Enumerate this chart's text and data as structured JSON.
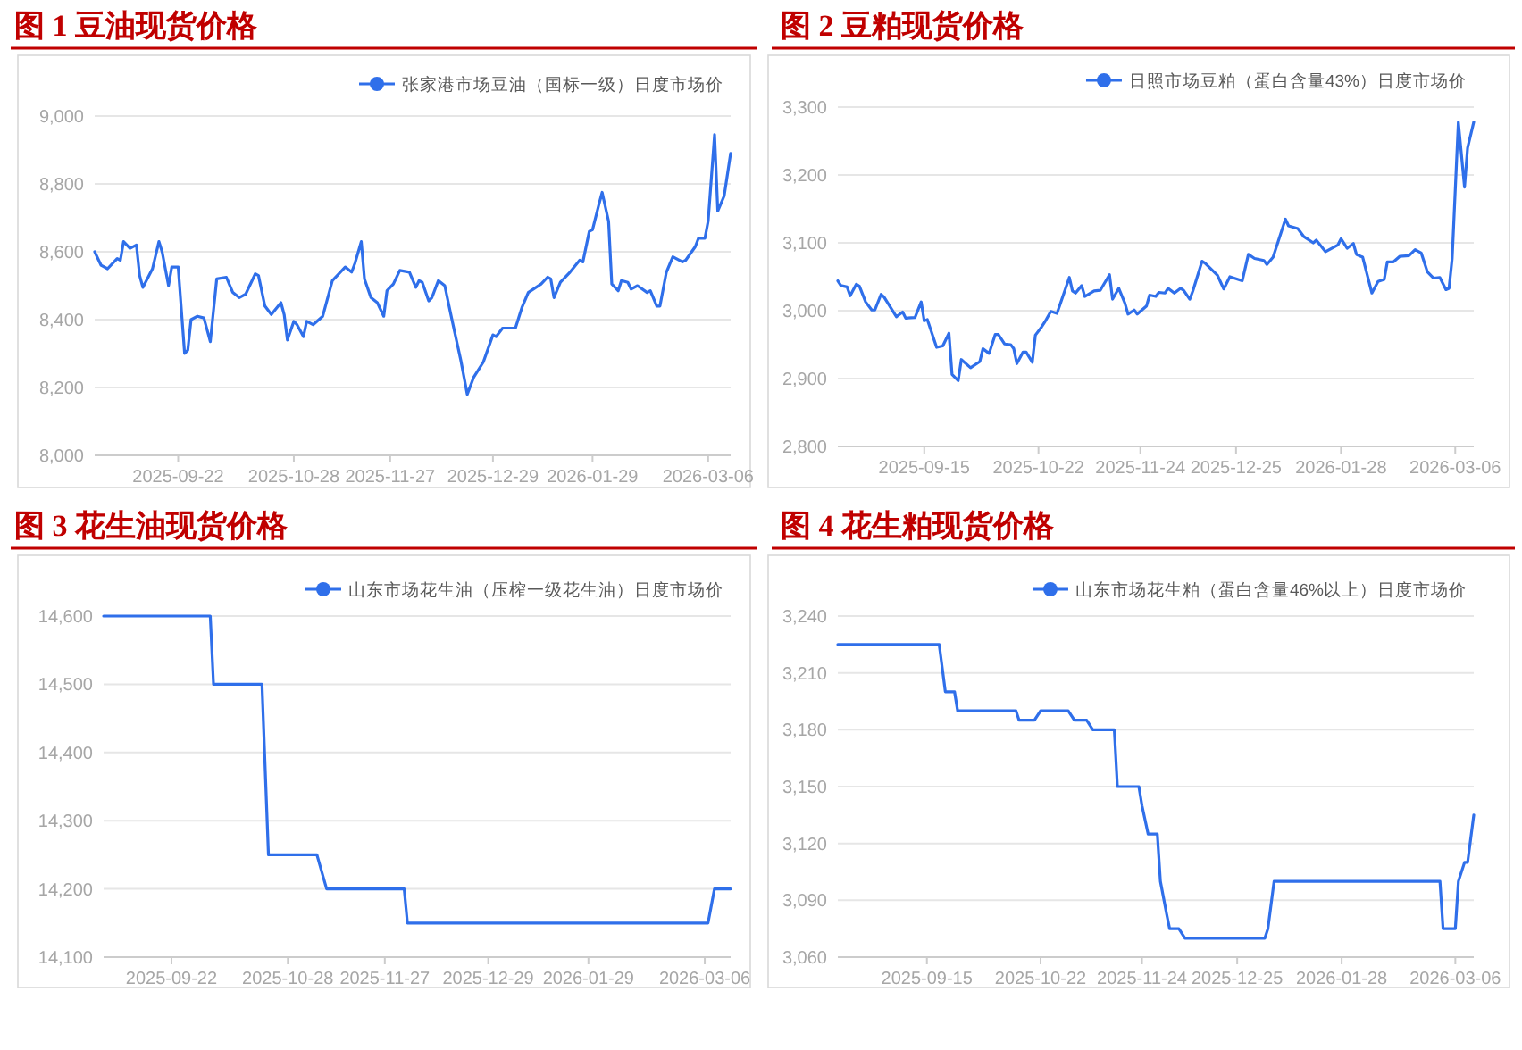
{
  "chart_data": [
    {
      "type": "line",
      "title": "图 1 豆油现货价格",
      "grid": "y",
      "legend": "top right",
      "xlim": [
        "2025-08-27",
        "2026-03-13"
      ],
      "xticks": [
        "2025-09-22",
        "2025-10-28",
        "2025-11-27",
        "2025-12-29",
        "2026-01-29",
        "2026-03-06"
      ],
      "ylim": [
        8000,
        9000
      ],
      "yticks": [
        {
          "value": 8000,
          "label": "8,000"
        },
        {
          "value": 8200,
          "label": "8,200"
        },
        {
          "value": 8400,
          "label": "8,400"
        },
        {
          "value": 8600,
          "label": "8,600"
        },
        {
          "value": 8800,
          "label": "8,800"
        },
        {
          "value": 9000,
          "label": "9,000"
        }
      ],
      "x": [
        "2025-08-27",
        "2025-08-29",
        "2025-08-31",
        "2025-09-03",
        "2025-09-04",
        "2025-09-05",
        "2025-09-07",
        "2025-09-09",
        "2025-09-10",
        "2025-09-11",
        "2025-09-14",
        "2025-09-16",
        "2025-09-17",
        "2025-09-19",
        "2025-09-20",
        "2025-09-22",
        "2025-09-24",
        "2025-09-25",
        "2025-09-26",
        "2025-09-28",
        "2025-09-30",
        "2025-10-02",
        "2025-10-04",
        "2025-10-07",
        "2025-10-09",
        "2025-10-11",
        "2025-10-13",
        "2025-10-16",
        "2025-10-17",
        "2025-10-19",
        "2025-10-21",
        "2025-10-24",
        "2025-10-25",
        "2025-10-26",
        "2025-10-28",
        "2025-10-29",
        "2025-10-31",
        "2025-11-01",
        "2025-11-03",
        "2025-11-06",
        "2025-11-09",
        "2025-11-13",
        "2025-11-15",
        "2025-11-16",
        "2025-11-18",
        "2025-11-19",
        "2025-11-21",
        "2025-11-23",
        "2025-11-25",
        "2025-11-26",
        "2025-11-28",
        "2025-11-30",
        "2025-12-03",
        "2025-12-05",
        "2025-12-06",
        "2025-12-07",
        "2025-12-09",
        "2025-12-10",
        "2025-12-12",
        "2025-12-14",
        "2025-12-16",
        "2025-12-19",
        "2025-12-21",
        "2025-12-23",
        "2025-12-26",
        "2025-12-29",
        "2025-12-30",
        "2026-01-01",
        "2026-01-05",
        "2026-01-07",
        "2026-01-09",
        "2026-01-13",
        "2026-01-15",
        "2026-01-16",
        "2026-01-17",
        "2026-01-19",
        "2026-01-22",
        "2026-01-25",
        "2026-01-26",
        "2026-01-28",
        "2026-01-29",
        "2026-01-31",
        "2026-02-01",
        "2026-02-03",
        "2026-02-04",
        "2026-02-06",
        "2026-02-07",
        "2026-02-09",
        "2026-02-10",
        "2026-02-12",
        "2026-02-15",
        "2026-02-16",
        "2026-02-18",
        "2026-02-19",
        "2026-02-21",
        "2026-02-23",
        "2026-02-26",
        "2026-02-27",
        "2026-03-02",
        "2026-03-03",
        "2026-03-05",
        "2026-03-06",
        "2026-03-08",
        "2026-03-09",
        "2026-03-11",
        "2026-03-13"
      ],
      "series": [
        {
          "name": "张家港市场豆油（国标一级）日度市场价",
          "color": "#2f6fea",
          "values": [
            8600,
            8560,
            8550,
            8580,
            8575,
            8630,
            8610,
            8620,
            8530,
            8495,
            8550,
            8630,
            8600,
            8500,
            8555,
            8555,
            8300,
            8310,
            8400,
            8410,
            8405,
            8335,
            8520,
            8525,
            8480,
            8465,
            8475,
            8535,
            8530,
            8440,
            8415,
            8450,
            8415,
            8340,
            8395,
            8385,
            8350,
            8395,
            8385,
            8410,
            8515,
            8555,
            8540,
            8565,
            8630,
            8520,
            8465,
            8450,
            8410,
            8485,
            8505,
            8545,
            8540,
            8495,
            8515,
            8510,
            8455,
            8465,
            8515,
            8500,
            8410,
            8280,
            8180,
            8230,
            8275,
            8355,
            8350,
            8375,
            8375,
            8435,
            8480,
            8505,
            8525,
            8520,
            8465,
            8510,
            8540,
            8575,
            8570,
            8660,
            8665,
            8740,
            8775,
            8690,
            8505,
            8485,
            8515,
            8510,
            8490,
            8500,
            8480,
            8485,
            8440,
            8440,
            8540,
            8585,
            8570,
            8575,
            8615,
            8640,
            8640,
            8690,
            8945,
            8720,
            8765,
            8890
          ]
        }
      ]
    },
    {
      "type": "line",
      "title": "图 2 豆粕现货价格",
      "grid": "y",
      "legend": "top right",
      "xlim": [
        "2025-08-18",
        "2026-03-12"
      ],
      "xticks": [
        "2025-09-15",
        "2025-10-22",
        "2025-11-24",
        "2025-12-25",
        "2026-01-28",
        "2026-03-06"
      ],
      "ylim": [
        2800,
        3300
      ],
      "yticks": [
        {
          "value": 2800,
          "label": "2,800"
        },
        {
          "value": 2900,
          "label": "2,900"
        },
        {
          "value": 3000,
          "label": "3,000"
        },
        {
          "value": 3100,
          "label": "3,100"
        },
        {
          "value": 3200,
          "label": "3,200"
        },
        {
          "value": 3300,
          "label": "3,300"
        }
      ],
      "x": [
        "2025-08-18",
        "2025-08-19",
        "2025-08-21",
        "2025-08-22",
        "2025-08-24",
        "2025-08-25",
        "2025-08-27",
        "2025-08-29",
        "2025-08-30",
        "2025-09-01",
        "2025-09-02",
        "2025-09-06",
        "2025-09-08",
        "2025-09-09",
        "2025-09-12",
        "2025-09-14",
        "2025-09-15",
        "2025-09-16",
        "2025-09-19",
        "2025-09-21",
        "2025-09-23",
        "2025-09-24",
        "2025-09-26",
        "2025-09-27",
        "2025-09-30",
        "2025-10-03",
        "2025-10-04",
        "2025-10-06",
        "2025-10-08",
        "2025-10-09",
        "2025-10-11",
        "2025-10-13",
        "2025-10-14",
        "2025-10-15",
        "2025-10-17",
        "2025-10-18",
        "2025-10-20",
        "2025-10-21",
        "2025-10-23",
        "2025-10-24",
        "2025-10-26",
        "2025-10-28",
        "2025-11-01",
        "2025-11-02",
        "2025-11-03",
        "2025-11-05",
        "2025-11-06",
        "2025-11-09",
        "2025-11-11",
        "2025-11-14",
        "2025-11-15",
        "2025-11-17",
        "2025-11-19",
        "2025-11-20",
        "2025-11-22",
        "2025-11-23",
        "2025-11-26",
        "2025-11-27",
        "2025-11-29",
        "2025-11-30",
        "2025-12-02",
        "2025-12-03",
        "2025-12-05",
        "2025-12-07",
        "2025-12-08",
        "2025-12-10",
        "2025-12-11",
        "2025-12-14",
        "2025-12-15",
        "2025-12-19",
        "2025-12-21",
        "2025-12-23",
        "2025-12-27",
        "2025-12-29",
        "2025-12-31",
        "2026-01-03",
        "2026-01-04",
        "2026-01-06",
        "2026-01-10",
        "2026-01-11",
        "2026-01-14",
        "2026-01-16",
        "2026-01-17",
        "2026-01-19",
        "2026-01-20",
        "2026-01-23",
        "2026-01-25",
        "2026-01-27",
        "2026-01-28",
        "2026-01-30",
        "2026-02-01",
        "2026-02-02",
        "2026-02-04",
        "2026-02-07",
        "2026-02-09",
        "2026-02-11",
        "2026-02-12",
        "2026-02-14",
        "2026-02-16",
        "2026-02-19",
        "2026-02-21",
        "2026-02-23",
        "2026-02-25",
        "2026-02-27",
        "2026-03-01",
        "2026-03-03",
        "2026-03-04",
        "2026-03-05",
        "2026-03-07",
        "2026-03-09",
        "2026-03-10",
        "2026-03-12"
      ],
      "series": [
        {
          "name": "日照市场豆粕（蛋白含量43%）日度市场价",
          "color": "#2f6fea",
          "values": [
            3044,
            3037,
            3035,
            3022,
            3039,
            3036,
            3013,
            3001,
            3001,
            3024,
            3020,
            2991,
            2998,
            2989,
            2990,
            3013,
            2985,
            2987,
            2946,
            2948,
            2967,
            2906,
            2897,
            2928,
            2916,
            2925,
            2944,
            2937,
            2965,
            2965,
            2951,
            2950,
            2944,
            2922,
            2939,
            2939,
            2924,
            2964,
            2976,
            2983,
            2999,
            2996,
            3049,
            3029,
            3026,
            3037,
            3021,
            3029,
            3030,
            3053,
            3017,
            3033,
            3011,
            2995,
            3001,
            2995,
            3007,
            3023,
            3021,
            3027,
            3026,
            3033,
            3026,
            3033,
            3030,
            3017,
            3029,
            3073,
            3070,
            3052,
            3032,
            3050,
            3044,
            3083,
            3077,
            3074,
            3068,
            3079,
            3135,
            3125,
            3121,
            3109,
            3106,
            3100,
            3104,
            3087,
            3092,
            3097,
            3106,
            3092,
            3099,
            3083,
            3079,
            3026,
            3043,
            3046,
            3072,
            3072,
            3080,
            3081,
            3090,
            3085,
            3057,
            3048,
            3049,
            3031,
            3033,
            3077,
            3278,
            3182,
            3240,
            3278
          ]
        }
      ]
    },
    {
      "type": "line",
      "title": "图 3 花生油现货价格",
      "grid": "y",
      "legend": "top right",
      "xlim": [
        "2025-09-01",
        "2026-03-14"
      ],
      "xticks": [
        "2025-09-22",
        "2025-10-28",
        "2025-11-27",
        "2025-12-29",
        "2026-01-29",
        "2026-03-06"
      ],
      "ylim": [
        14100,
        14600
      ],
      "yticks": [
        {
          "value": 14100,
          "label": "14,100"
        },
        {
          "value": 14200,
          "label": "14,200"
        },
        {
          "value": 14300,
          "label": "14,300"
        },
        {
          "value": 14400,
          "label": "14,400"
        },
        {
          "value": 14500,
          "label": "14,500"
        },
        {
          "value": 14600,
          "label": "14,600"
        }
      ],
      "x": [
        "2025-09-01",
        "2025-10-04",
        "2025-10-05",
        "2025-10-20",
        "2025-10-22",
        "2025-11-06",
        "2025-11-09",
        "2025-12-03",
        "2025-12-04",
        "2026-03-07",
        "2026-03-09",
        "2026-03-14"
      ],
      "series": [
        {
          "name": "山东市场花生油（压榨一级花生油）日度市场价",
          "color": "#2f6fea",
          "values": [
            14600,
            14600,
            14500,
            14500,
            14250,
            14250,
            14200,
            14200,
            14150,
            14150,
            14200,
            14200
          ]
        }
      ]
    },
    {
      "type": "line",
      "title": "图 4 花生粕现货价格",
      "grid": "y",
      "legend": "top right",
      "xlim": [
        "2025-08-17",
        "2026-03-12"
      ],
      "xticks": [
        "2025-09-15",
        "2025-10-22",
        "2025-11-24",
        "2025-12-25",
        "2026-01-28",
        "2026-03-06"
      ],
      "ylim": [
        3060,
        3240
      ],
      "yticks": [
        {
          "value": 3060,
          "label": "3,060"
        },
        {
          "value": 3090,
          "label": "3,090"
        },
        {
          "value": 3120,
          "label": "3,120"
        },
        {
          "value": 3150,
          "label": "3,150"
        },
        {
          "value": 3180,
          "label": "3,180"
        },
        {
          "value": 3210,
          "label": "3,210"
        },
        {
          "value": 3240,
          "label": "3,240"
        }
      ],
      "x": [
        "2025-08-17",
        "2025-09-19",
        "2025-09-21",
        "2025-09-24",
        "2025-09-25",
        "2025-10-14",
        "2025-10-15",
        "2025-10-20",
        "2025-10-22",
        "2025-10-31",
        "2025-11-02",
        "2025-11-06",
        "2025-11-08",
        "2025-11-15",
        "2025-11-16",
        "2025-11-23",
        "2025-11-24",
        "2025-11-26",
        "2025-11-29",
        "2025-11-30",
        "2025-12-02",
        "2025-12-03",
        "2025-12-06",
        "2025-12-08",
        "2026-01-03",
        "2026-01-04",
        "2026-01-06",
        "2026-03-01",
        "2026-03-02",
        "2026-03-06",
        "2026-03-07",
        "2026-03-09",
        "2026-03-10",
        "2026-03-12"
      ],
      "series": [
        {
          "name": "山东市场花生粕（蛋白含量46%以上）日度市场价",
          "color": "#2f6fea",
          "values": [
            3225,
            3225,
            3200,
            3200,
            3190,
            3190,
            3185,
            3185,
            3190,
            3190,
            3185,
            3185,
            3180,
            3180,
            3150,
            3150,
            3140,
            3125,
            3125,
            3100,
            3083,
            3075,
            3075,
            3070,
            3070,
            3075,
            3100,
            3100,
            3075,
            3075,
            3100,
            3110,
            3110,
            3135
          ]
        }
      ]
    }
  ]
}
